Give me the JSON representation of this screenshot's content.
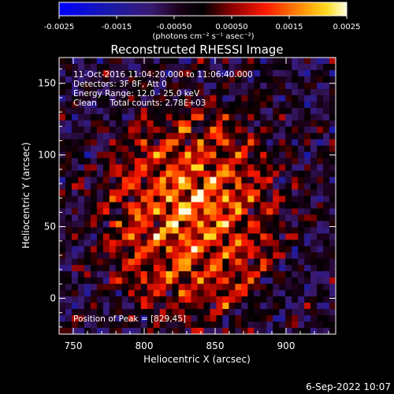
{
  "colorbar": {
    "ticks": [
      "-0.0025",
      "-0.0015",
      "-0.00050",
      "0.00050",
      "0.0015",
      "0.0025"
    ],
    "tick_values": [
      -0.0025,
      -0.0015,
      -0.0005,
      0.0005,
      0.0015,
      0.0025
    ],
    "range": [
      -0.0025,
      0.0025
    ],
    "unit_label": "(photons cm⁻² s⁻¹ asec⁻²)"
  },
  "image": {
    "title": "Reconstructed RHESSI Image",
    "info_lines": [
      "11-Oct-2016 11:04:20.000 to 11:06:40.000",
      "Detectors: 3F 8F, Att 0",
      "Energy Range: 12.0 - 25.0 keV",
      "Clean     Total counts: 2.78E+03"
    ],
    "peak_label": "Position of Peak = [829,45]",
    "peak": [
      829,
      45
    ],
    "x_axis": {
      "label": "Heliocentric X (arcsec)",
      "range": [
        740,
        935
      ],
      "ticks": [
        750,
        800,
        850,
        900
      ],
      "tick_labels": [
        "750",
        "800",
        "850",
        "900"
      ]
    },
    "y_axis": {
      "label": "Heliocentric Y (arcsec)",
      "range": [
        -25,
        168
      ],
      "ticks": [
        0,
        50,
        100,
        150
      ],
      "tick_labels": [
        "0",
        "50",
        "100",
        "150"
      ]
    }
  },
  "footer": {
    "date": "6-Sep-2022 10:07"
  }
}
